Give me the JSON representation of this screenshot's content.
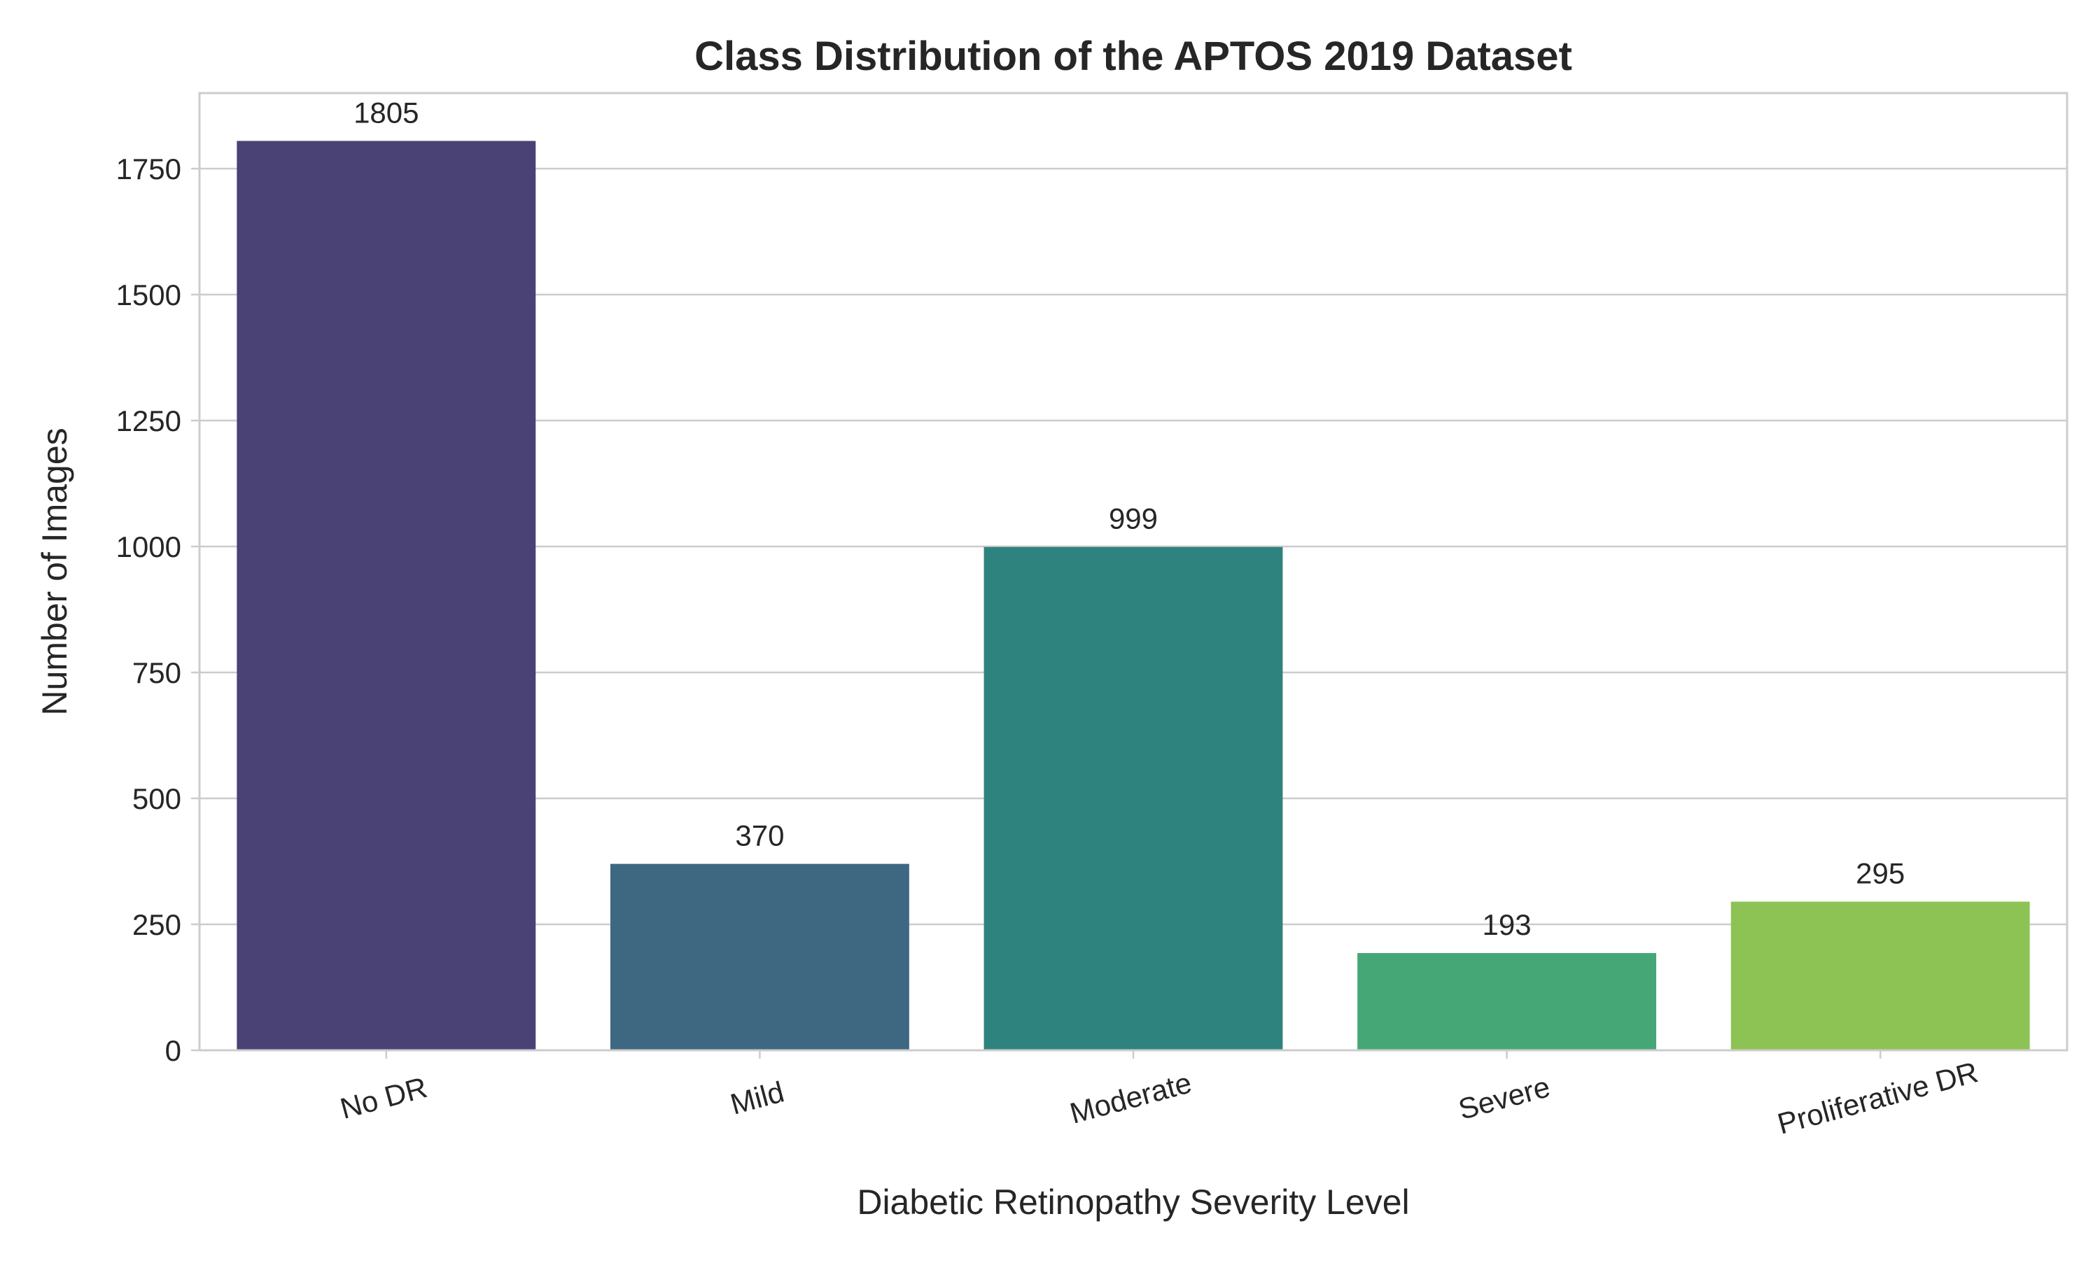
{
  "chart_data": {
    "type": "bar",
    "title": "Class Distribution of the APTOS 2019 Dataset",
    "xlabel": "Diabetic Retinopathy Severity Level",
    "ylabel": "Number of Images",
    "categories": [
      "No DR",
      "Mild",
      "Moderate",
      "Severe",
      "Proliferative DR"
    ],
    "values": [
      1805,
      370,
      999,
      193,
      295
    ],
    "data_labels": [
      "1805",
      "370",
      "999",
      "193",
      "295"
    ],
    "colors": [
      "#4a4275",
      "#3e6782",
      "#2f837e",
      "#45a776",
      "#8dc354"
    ],
    "ylim": [
      0,
      1900
    ],
    "yticks": [
      0,
      250,
      500,
      750,
      1000,
      1250,
      1500,
      1750
    ],
    "ytick_labels": [
      "0",
      "250",
      "500",
      "750",
      "1000",
      "1250",
      "1500",
      "1750"
    ],
    "grid": "horizontal",
    "legend": "none"
  }
}
